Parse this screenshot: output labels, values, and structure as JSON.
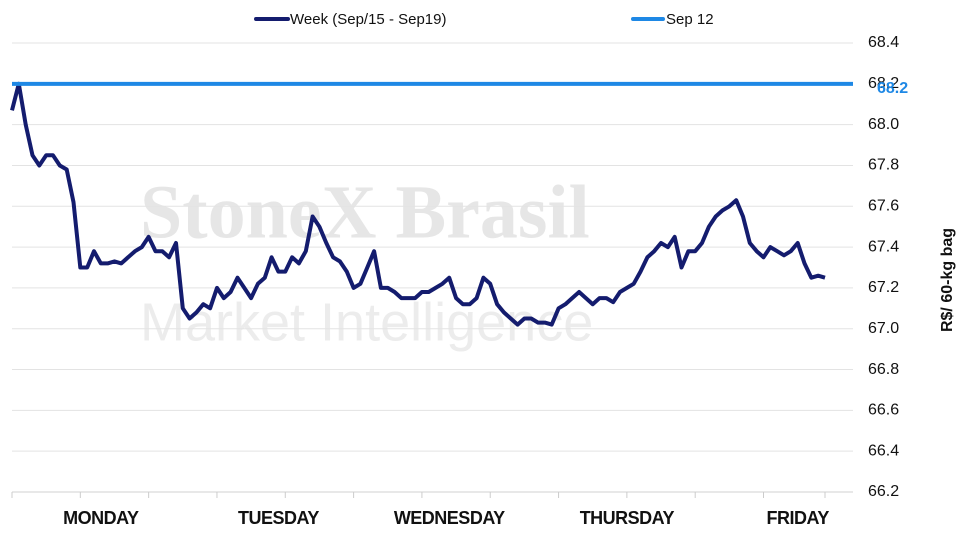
{
  "chart_data": {
    "type": "line",
    "y_axis_label": "R$/ 60-kg bag",
    "watermark": [
      "StoneX Brasil",
      "Market Intelligence"
    ],
    "categories": [
      null,
      null,
      null,
      null,
      null,
      null,
      null,
      null,
      null,
      null,
      null,
      null,
      null,
      "MONDAY",
      null,
      null,
      null,
      null,
      null,
      null,
      null,
      null,
      null,
      null,
      null,
      null,
      null,
      null,
      null,
      null,
      null,
      null,
      null,
      null,
      null,
      null,
      null,
      null,
      null,
      "TUESDAY",
      null,
      null,
      null,
      null,
      null,
      null,
      null,
      null,
      null,
      null,
      null,
      null,
      null,
      null,
      null,
      null,
      null,
      null,
      null,
      null,
      null,
      null,
      null,
      null,
      "WEDNESDAY",
      null,
      null,
      null,
      null,
      null,
      null,
      null,
      null,
      null,
      null,
      null,
      null,
      null,
      null,
      null,
      null,
      null,
      null,
      null,
      null,
      null,
      null,
      null,
      null,
      null,
      "THURSDAY",
      null,
      null,
      null,
      null,
      null,
      null,
      null,
      null,
      null,
      null,
      null,
      null,
      null,
      null,
      null,
      null,
      null,
      null,
      null,
      null,
      null,
      null,
      null,
      null,
      "FRIDAY",
      null,
      null,
      null,
      null
    ],
    "series": [
      {
        "name": "Week (Sep/15 - Sep19)",
        "color": "#141c6e",
        "values": [
          68.07,
          68.2,
          68.0,
          67.85,
          67.8,
          67.85,
          67.85,
          67.8,
          67.78,
          67.62,
          67.3,
          67.3,
          67.38,
          67.32,
          67.32,
          67.33,
          67.32,
          67.35,
          67.38,
          67.4,
          67.45,
          67.38,
          67.38,
          67.35,
          67.42,
          67.1,
          67.05,
          67.08,
          67.12,
          67.1,
          67.2,
          67.15,
          67.18,
          67.25,
          67.2,
          67.15,
          67.22,
          67.25,
          67.35,
          67.28,
          67.28,
          67.35,
          67.32,
          67.38,
          67.55,
          67.5,
          67.42,
          67.35,
          67.33,
          67.28,
          67.2,
          67.22,
          67.3,
          67.38,
          67.2,
          67.2,
          67.18,
          67.15,
          67.15,
          67.15,
          67.18,
          67.18,
          67.2,
          67.22,
          67.25,
          67.15,
          67.12,
          67.12,
          67.15,
          67.25,
          67.22,
          67.12,
          67.08,
          67.05,
          67.02,
          67.05,
          67.05,
          67.03,
          67.03,
          67.02,
          67.1,
          67.12,
          67.15,
          67.18,
          67.15,
          67.12,
          67.15,
          67.15,
          67.13,
          67.18,
          67.2,
          67.22,
          67.28,
          67.35,
          67.38,
          67.42,
          67.4,
          67.45,
          67.3,
          67.38,
          67.38,
          67.42,
          67.5,
          67.55,
          67.58,
          67.6,
          67.63,
          67.55,
          67.42,
          67.38,
          67.35,
          67.4,
          67.38,
          67.36,
          67.38,
          67.42,
          67.32,
          67.25,
          67.26,
          67.25
        ]
      }
    ],
    "reference_line": {
      "name": "Sep 12",
      "color": "#1e88e5",
      "value": 68.2
    },
    "ylim": [
      66.2,
      68.4
    ],
    "yticks": [
      66.2,
      66.4,
      66.6,
      66.8,
      {
        "value": 67,
        "label": "67.0"
      },
      67.2,
      67.4,
      67.6,
      67.8,
      {
        "value": 68,
        "label": "68.0"
      },
      68.2,
      68.4
    ],
    "grid": true
  }
}
